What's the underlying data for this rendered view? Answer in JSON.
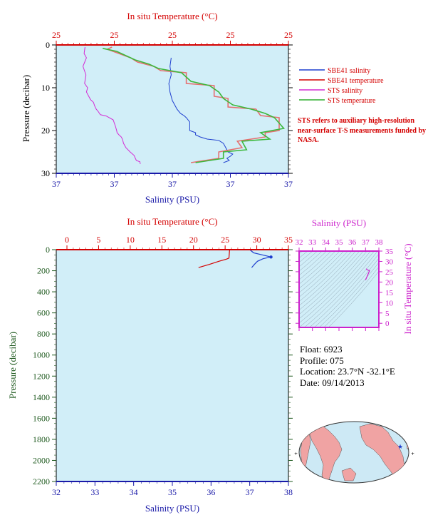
{
  "chart_data": [
    {
      "type": "line",
      "panel": "top-profile",
      "title": "",
      "x_top_label": "In situ Temperature (°C)",
      "x_top_ticks": [
        "25",
        "25",
        "25",
        "25",
        "25"
      ],
      "x_bottom_label": "Salinity (PSU)",
      "x_bottom_ticks": [
        "37",
        "37",
        "37",
        "37",
        "37"
      ],
      "ylabel": "Pressure (decibar)",
      "y_ticks": [
        "0",
        "10",
        "20",
        "30"
      ],
      "ylim": [
        0,
        30
      ],
      "legend_position": "right",
      "legend": [
        {
          "name": "SBE41 salinity",
          "color": "#1f3fcf"
        },
        {
          "name": "SBE41 temperature",
          "color": "#d40000"
        },
        {
          "name": "STS salinity",
          "color": "#d42ad4"
        },
        {
          "name": "STS temperature",
          "color": "#2fae2f"
        }
      ],
      "series": [
        {
          "name": "STS salinity",
          "color": "#d42ad4",
          "x_frac": [
            0.124,
            0.12,
            0.13,
            0.115,
            0.128,
            0.122,
            0.135,
            0.13,
            0.14,
            0.148,
            0.16,
            0.165,
            0.172,
            0.18,
            0.19,
            0.215,
            0.245,
            0.255,
            0.26,
            0.262,
            0.27,
            0.28,
            0.285,
            0.29,
            0.3,
            0.318,
            0.335,
            0.34,
            0.345,
            0.36,
            0.362
          ],
          "p": [
            0.5,
            2,
            3,
            5,
            7,
            9,
            10,
            11,
            12,
            12.8,
            13.4,
            14.2,
            15,
            15.5,
            16.3,
            16.6,
            17.5,
            19,
            20,
            20.5,
            21,
            21.5,
            22,
            23,
            24,
            25,
            25.8,
            26.4,
            27,
            27.3,
            27.8
          ]
        },
        {
          "name": "SBE41 salinity",
          "color": "#1f3fcf",
          "x_frac": [
            0.495,
            0.49,
            0.495,
            0.485,
            0.49,
            0.5,
            0.51,
            0.52,
            0.535,
            0.55,
            0.56,
            0.575,
            0.575,
            0.6,
            0.6,
            0.62,
            0.65,
            0.7,
            0.72,
            0.73,
            0.74,
            0.76,
            0.75,
            0.735,
            0.745,
            0.72
          ],
          "p": [
            3,
            5,
            7,
            9,
            11,
            13,
            14,
            15,
            16,
            16.5,
            17,
            18,
            20,
            20.5,
            21,
            21.5,
            22,
            22.3,
            23,
            24,
            25,
            25.5,
            26,
            26.5,
            27,
            27.5
          ]
        },
        {
          "name": "SBE41 temperature",
          "color": "#e56f6f",
          "x_frac": [
            0.24,
            0.22,
            0.32,
            0.35,
            0.42,
            0.45,
            0.56,
            0.56,
            0.68,
            0.68,
            0.74,
            0.74,
            0.86,
            0.88,
            0.96,
            0.96,
            0.9,
            0.9,
            0.78,
            0.8,
            0.7,
            0.7,
            0.58
          ],
          "p": [
            0.5,
            1,
            3,
            4,
            5,
            6,
            6.5,
            9,
            9.5,
            12,
            12.5,
            14.5,
            15,
            16.5,
            17,
            20,
            20.5,
            21.5,
            22.5,
            24,
            25,
            26.5,
            27.5
          ]
        },
        {
          "name": "STS temperature",
          "color": "#3cb83c",
          "x_frac": [
            0.2,
            0.26,
            0.3,
            0.34,
            0.4,
            0.44,
            0.54,
            0.58,
            0.66,
            0.7,
            0.72,
            0.76,
            0.84,
            0.9,
            0.94,
            0.98,
            0.88,
            0.92,
            0.8,
            0.82,
            0.72,
            0.72,
            0.6
          ],
          "p": [
            0.8,
            1.5,
            2.5,
            3.5,
            4.5,
            5.5,
            6.5,
            8.5,
            9.5,
            11,
            12.5,
            14,
            15,
            16,
            17,
            19.5,
            20.5,
            22,
            22.5,
            24.5,
            25,
            26.5,
            27.5
          ]
        }
      ]
    },
    {
      "type": "line",
      "panel": "full-profile",
      "title": "",
      "x_top_label": "In situ Temperature (°C)",
      "x_top_ticks": [
        0,
        5,
        10,
        15,
        20,
        25,
        30,
        35
      ],
      "x_bottom_label": "Salinity (PSU)",
      "x_bottom_ticks": [
        32,
        33,
        34,
        35,
        36,
        37,
        38
      ],
      "ylabel": "Pressure (decibar)",
      "y_ticks": [
        0,
        200,
        400,
        600,
        800,
        1000,
        1200,
        1400,
        1600,
        1800,
        2000,
        2200
      ],
      "ylim": [
        0,
        2200
      ],
      "series": [
        {
          "name": "temperature",
          "color": "#d40000",
          "x": [
            20.8,
            22.5,
            24,
            25.2,
            25.6,
            25.7
          ],
          "y": [
            170,
            140,
            110,
            90,
            80,
            0
          ]
        },
        {
          "name": "salinity",
          "color": "#1f3fcf",
          "x": [
            37.05,
            37.12,
            37.2,
            37.35,
            37.55,
            37.45,
            37.1,
            37.0
          ],
          "y": [
            170,
            140,
            110,
            85,
            70,
            60,
            30,
            0
          ]
        }
      ],
      "marker": {
        "salinity": 37.55,
        "pressure": 70,
        "color": "#1f3fcf"
      }
    },
    {
      "type": "scatter",
      "panel": "t-s-diagram",
      "title": "",
      "x_top_label": "Salinity (PSU)",
      "x_ticks": [
        32,
        33,
        34,
        35,
        36,
        37,
        38
      ],
      "ylabel": "In situ Temperature (°C)",
      "y_ticks": [
        0,
        5,
        10,
        15,
        20,
        25,
        30,
        35
      ],
      "xlim": [
        32,
        38
      ],
      "ylim": [
        -2,
        35
      ],
      "isopycnals": true,
      "series": [
        {
          "name": "profile",
          "color": "#cc22cc",
          "x": [
            37.0,
            37.1,
            37.2,
            37.3,
            37.1,
            37.05
          ],
          "y": [
            21,
            22.5,
            24,
            25.5,
            26,
            26.5
          ]
        }
      ]
    }
  ],
  "note": "STS refers to auxiliary high-resolution near-surface T-S measurements funded by NASA.",
  "float_info": {
    "float": "Float:  6923",
    "profile": "Profile:  075",
    "location": "Location:  23.7°N  -32.1°E",
    "date": "Date:  09/14/2013"
  },
  "map": {
    "marker_color": "#1f3fcf",
    "land_color": "#f0a3a3",
    "ocean_color": "#cde9f5"
  },
  "colors": {
    "plot_bg": "#d1eef8",
    "red": "#d40000",
    "blue": "#1a1aa8",
    "green": "#1f5a1f",
    "magenta": "#cc22cc"
  }
}
